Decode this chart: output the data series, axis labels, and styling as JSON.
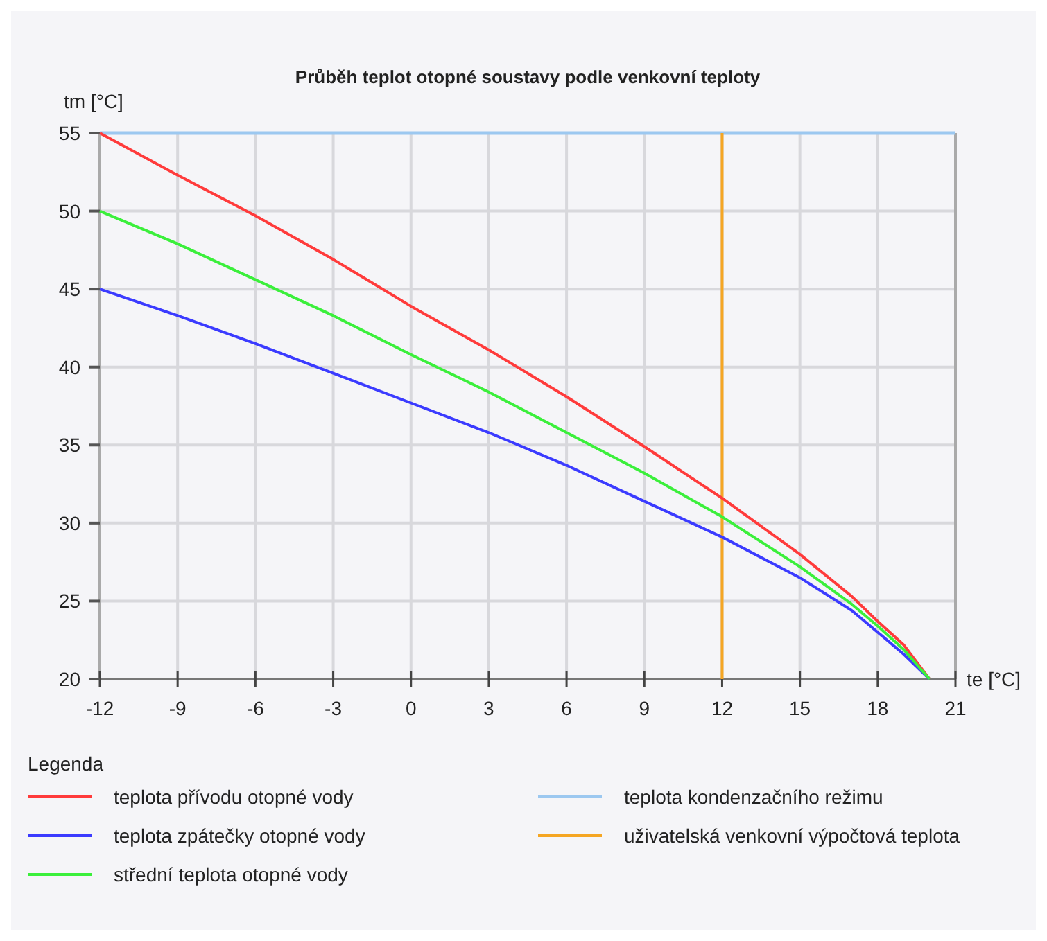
{
  "chart_data": {
    "type": "line",
    "title": "Průběh teplot otopné soustavy podle venkovní teploty",
    "xlabel": "te [°C]",
    "ylabel": "tm [°C]",
    "legend_title": "Legenda",
    "legend": "bottom",
    "grid": true,
    "xlim": [
      -12,
      21
    ],
    "xticks": [
      -12,
      -9,
      -6,
      -3,
      0,
      3,
      6,
      9,
      12,
      15,
      18,
      21
    ],
    "ylim": [
      20,
      55
    ],
    "yticks": [
      20,
      25,
      30,
      35,
      40,
      45,
      50,
      55
    ],
    "series": [
      {
        "name": "teplota přívodu otopné vody",
        "color": "#ff3b3b",
        "x": [
          -12,
          -9,
          -6,
          -3,
          0,
          3,
          6,
          9,
          12,
          15,
          17,
          18,
          19,
          20
        ],
        "values": [
          55,
          52.3,
          49.7,
          46.9,
          43.9,
          41.1,
          38.1,
          34.9,
          31.6,
          28,
          25.3,
          23.7,
          22.2,
          20
        ]
      },
      {
        "name": "teplota zpátečky otopné vody",
        "color": "#3b3bff",
        "x": [
          -12,
          -9,
          -6,
          -3,
          0,
          3,
          6,
          9,
          12,
          15,
          17,
          18,
          19,
          20
        ],
        "values": [
          45,
          43.3,
          41.5,
          39.6,
          37.7,
          35.8,
          33.7,
          31.4,
          29.1,
          26.5,
          24.4,
          23,
          21.6,
          20
        ]
      },
      {
        "name": "střední teplota otopné vody",
        "color": "#3bef3b",
        "x": [
          -12,
          -9,
          -6,
          -3,
          0,
          3,
          6,
          9,
          12,
          15,
          17,
          18,
          19,
          20
        ],
        "values": [
          50,
          47.9,
          45.6,
          43.3,
          40.8,
          38.4,
          35.8,
          33.2,
          30.4,
          27.2,
          24.8,
          23.4,
          21.9,
          20
        ]
      }
    ],
    "ref_lines": [
      {
        "axis": "y",
        "value": 55,
        "label": "teplota kondenzačního režimu",
        "color": "#9cc8f0"
      },
      {
        "axis": "x",
        "value": 12,
        "label": "uživatelská venkovní výpočtová teplota",
        "color": "#f5a623"
      }
    ]
  }
}
